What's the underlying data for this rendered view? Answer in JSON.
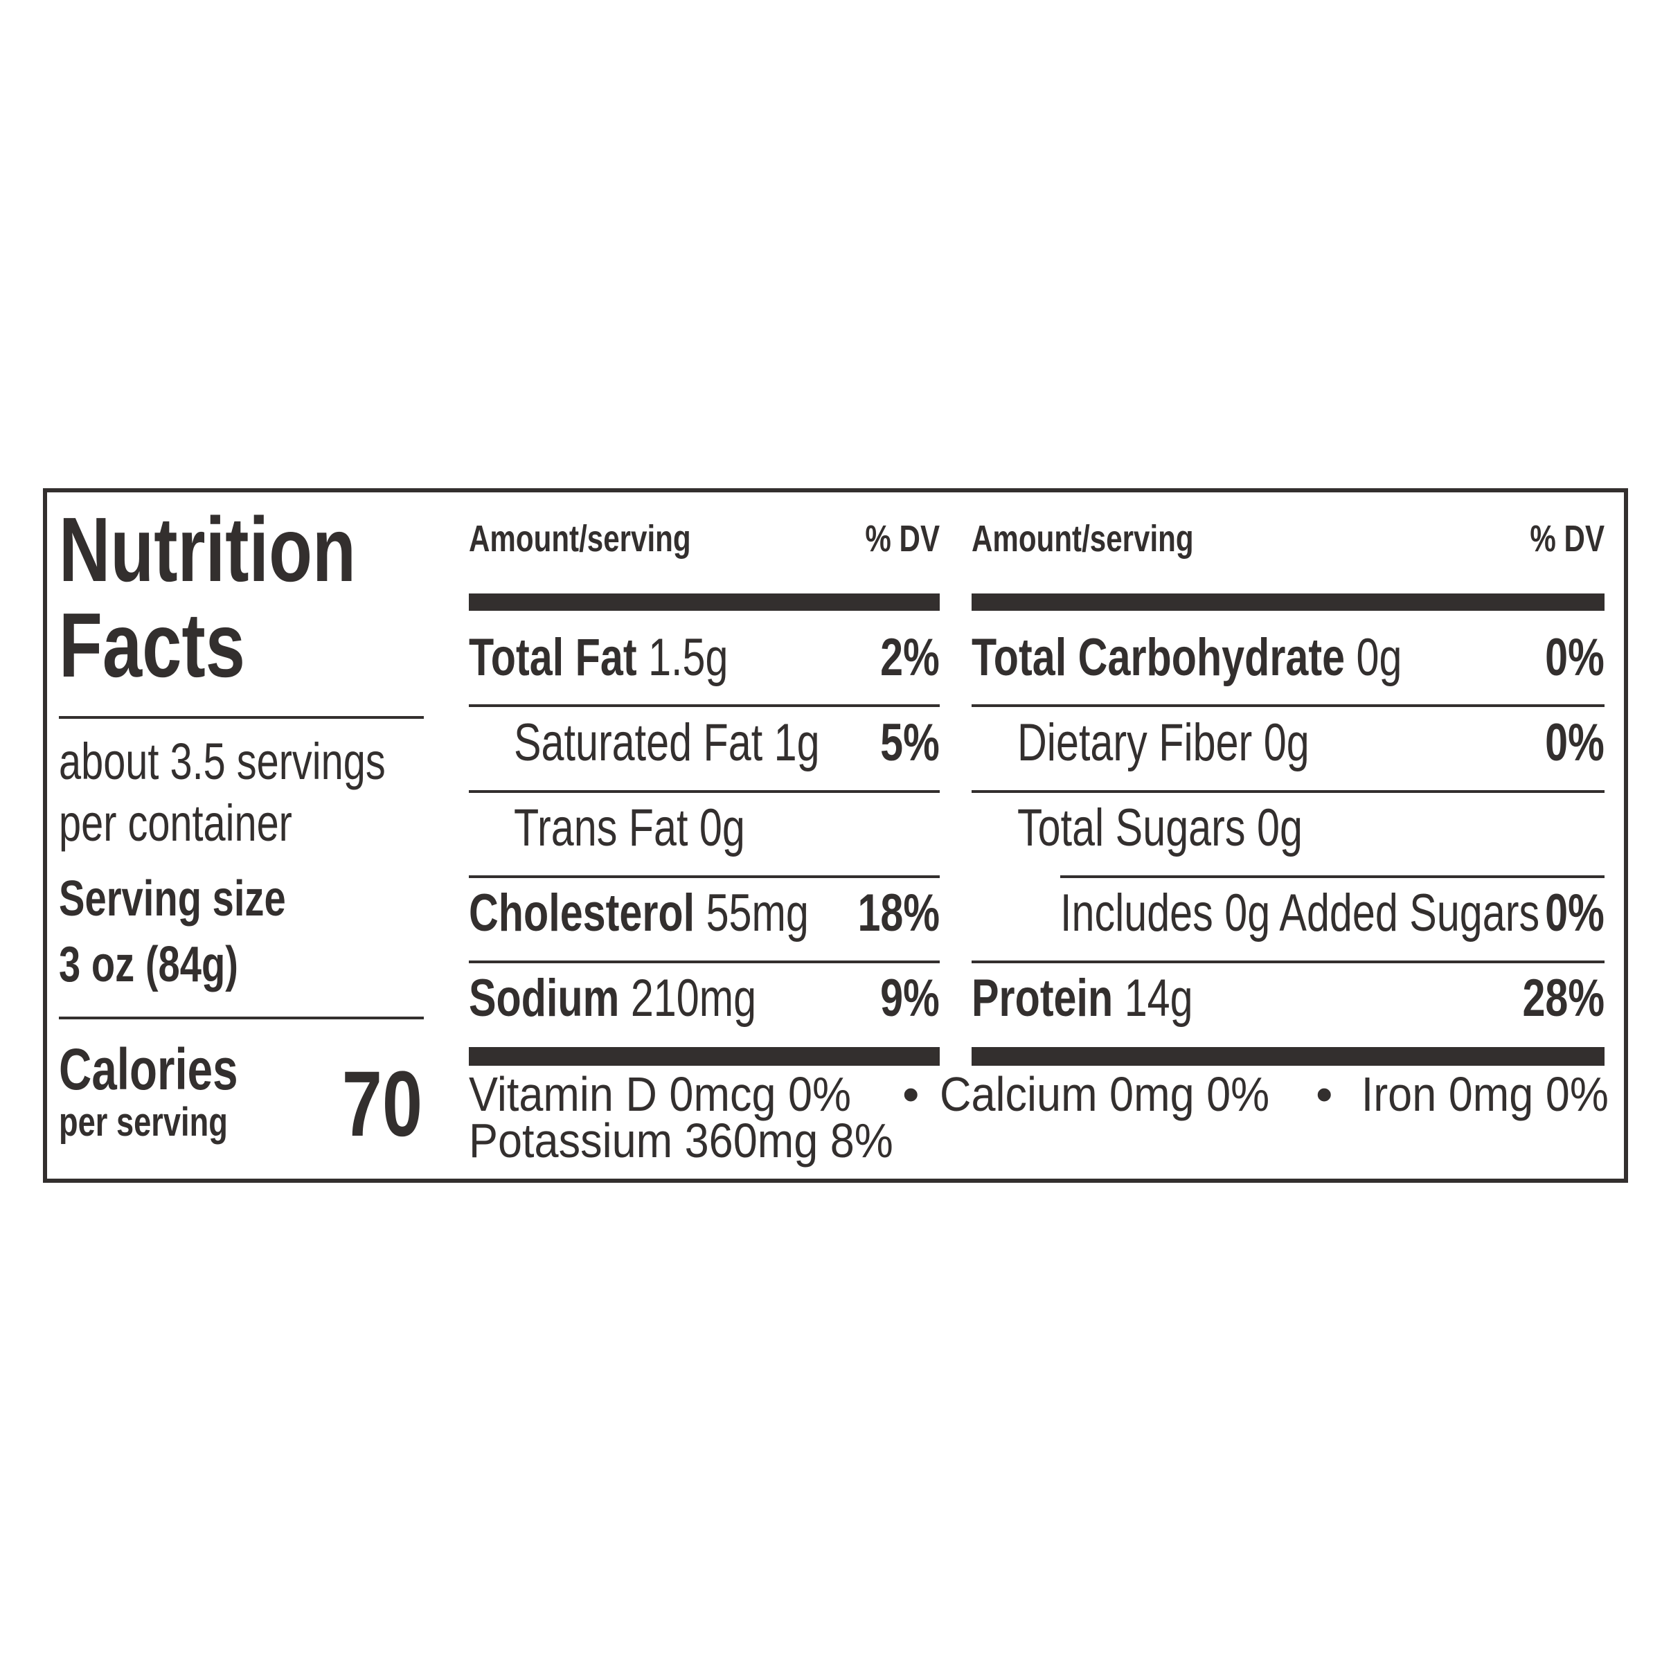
{
  "title": [
    "Nutrition",
    "Facts"
  ],
  "servings": [
    "about 3.5 servings",
    "per container"
  ],
  "serving_size": {
    "label": "Serving size",
    "value": "3 oz (84g)"
  },
  "calories": {
    "label": "Calories",
    "sublabel": "per serving",
    "value": 70
  },
  "columns": [
    {
      "header": {
        "amount": "Amount/serving",
        "dv": "% DV"
      },
      "rows": [
        {
          "name": "Total Fat",
          "amount": "1.5g",
          "dv": "2%",
          "bold": true
        },
        {
          "name": "Saturated Fat",
          "amount": "1g",
          "dv": "5%",
          "bold": false
        },
        {
          "name": "Trans Fat",
          "amount": "0g",
          "bold": false
        },
        {
          "name": "Cholesterol",
          "amount": "55mg",
          "dv": "18%",
          "bold": true
        },
        {
          "name": "Sodium",
          "amount": "210mg",
          "dv": "9%",
          "bold": true
        }
      ]
    },
    {
      "header": {
        "amount": "Amount/serving",
        "dv": "% DV"
      },
      "rows": [
        {
          "name": "Total Carbohydrate",
          "amount": "0g",
          "dv": "0%",
          "bold": true
        },
        {
          "name": "Dietary Fiber",
          "amount": "0g",
          "dv": "0%",
          "bold": false
        },
        {
          "name": "Total Sugars",
          "amount": "0g",
          "bold": false
        },
        {
          "name": "Includes",
          "amount": "0g Added Sugars",
          "dv": "0%",
          "bold": false
        },
        {
          "name": "Protein",
          "amount": "14g",
          "dv": "28%",
          "bold": true
        }
      ]
    }
  ],
  "footer": {
    "nutrients": [
      "Vitamin D 0mcg 0%",
      "Calcium 0mg 0%",
      "Iron 0mg 0%",
      "Potassium 360mg 8%"
    ],
    "separator": "•"
  }
}
